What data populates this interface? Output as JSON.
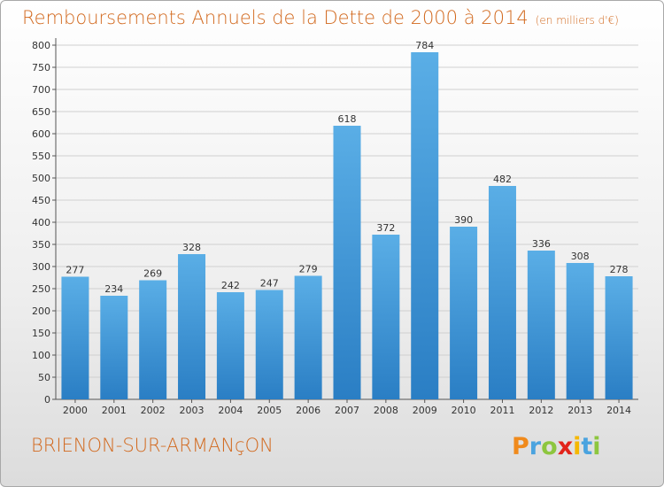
{
  "header": {
    "title": "Remboursements Annuels de la Dette de 2000 à 2014",
    "unit_note": "(en milliers d'€)"
  },
  "footer": {
    "city": "BRIENON-SUR-ARMANçON",
    "brand": "Proxiti"
  },
  "colors": {
    "title": "#d2691e",
    "bar_top": "#5aaee6",
    "bar_bottom": "#2a7ec4",
    "grid": "#d0d0d0"
  },
  "chart_data": {
    "type": "bar",
    "title": "Remboursements Annuels de la Dette de 2000 à 2014",
    "xlabel": "",
    "ylabel": "",
    "categories": [
      "2000",
      "2001",
      "2002",
      "2003",
      "2004",
      "2005",
      "2006",
      "2007",
      "2008",
      "2009",
      "2010",
      "2011",
      "2012",
      "2013",
      "2014"
    ],
    "values": [
      277,
      234,
      269,
      328,
      242,
      247,
      279,
      618,
      372,
      784,
      390,
      482,
      336,
      308,
      278
    ],
    "ylim": [
      0,
      800
    ],
    "yticks": [
      0,
      50,
      100,
      150,
      200,
      250,
      300,
      350,
      400,
      450,
      500,
      550,
      600,
      650,
      700,
      750,
      800
    ],
    "grid": true,
    "data_labels": true
  }
}
